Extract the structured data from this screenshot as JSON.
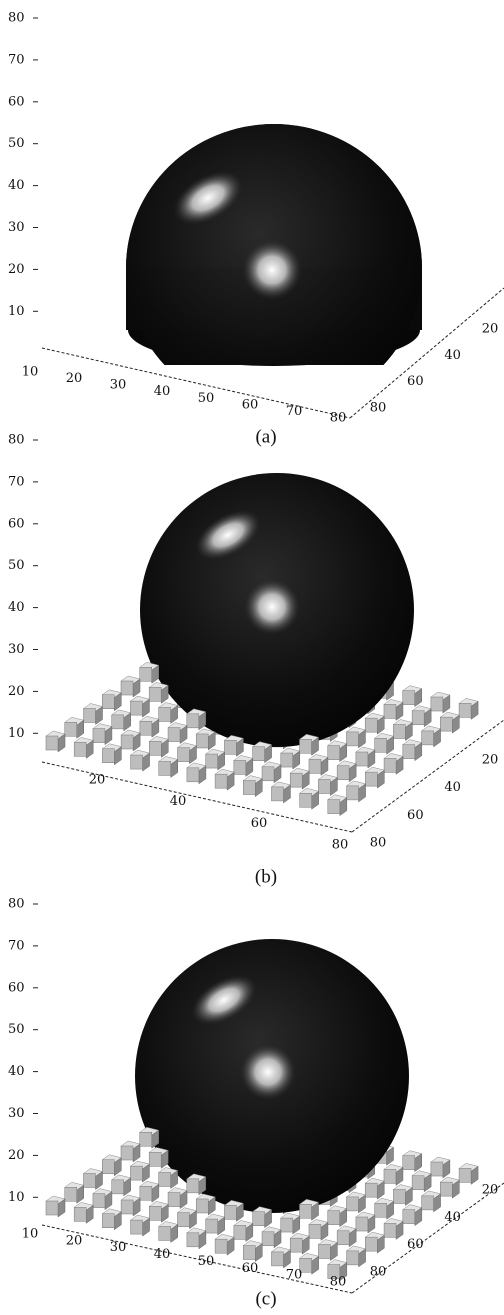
{
  "panels": [
    {
      "caption": "(a)",
      "z_ticks": [
        80,
        70,
        60,
        50,
        40,
        30,
        20,
        10
      ],
      "x_ticks": [
        10,
        20,
        30,
        40,
        50,
        60,
        70,
        80
      ],
      "y_ticks": [
        20,
        40,
        60,
        80
      ]
    },
    {
      "caption": "(b)",
      "z_ticks": [
        80,
        70,
        60,
        50,
        40,
        30,
        20,
        10
      ],
      "x_ticks": [
        20,
        40,
        60,
        80
      ],
      "y_ticks": [
        20,
        40,
        60,
        80
      ]
    },
    {
      "caption": "(c)",
      "z_ticks": [
        80,
        70,
        60,
        50,
        40,
        30,
        20,
        10
      ],
      "x_ticks": [
        10,
        20,
        30,
        40,
        50,
        60,
        70,
        80
      ],
      "y_ticks": [
        20,
        40,
        60,
        80
      ]
    }
  ]
}
